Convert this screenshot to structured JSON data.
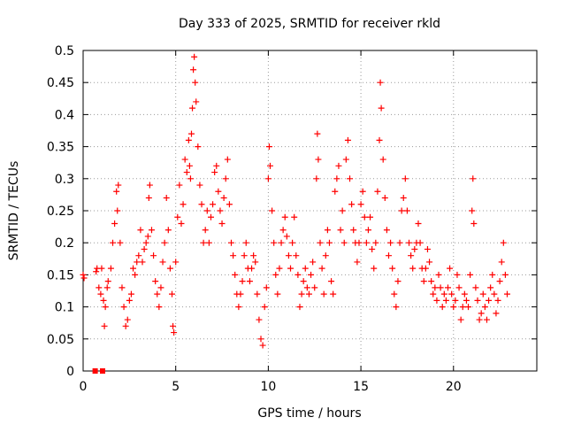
{
  "chart_data": {
    "type": "scatter",
    "title": "Day 333 of 2025, SRMTID for receiver rkld",
    "xlabel": "GPS time / hours",
    "ylabel": "SRMTID / TECUs",
    "xlim": [
      0,
      24.5
    ],
    "ylim": [
      0,
      0.5
    ],
    "x_ticks": [
      "0",
      "5",
      "10",
      "15",
      "20"
    ],
    "y_ticks": [
      "0",
      "0.05",
      "0.1",
      "0.15",
      "0.2",
      "0.25",
      "0.3",
      "0.35",
      "0.4",
      "0.45",
      "0.5"
    ],
    "x_tick_values": [
      0,
      5,
      10,
      15,
      20
    ],
    "y_tick_values": [
      0,
      0.05,
      0.1,
      0.15,
      0.2,
      0.25,
      0.3,
      0.35,
      0.4,
      0.45,
      0.5
    ],
    "grid": true,
    "legend": "none",
    "marker": "plus",
    "color": "#ff0000",
    "zero_points": {
      "x": [
        0.65,
        1.05
      ],
      "y": [
        0,
        0
      ]
    },
    "points": [
      [
        0.0,
        0.15
      ],
      [
        0.05,
        0.145
      ],
      [
        0.7,
        0.155
      ],
      [
        0.75,
        0.16
      ],
      [
        0.85,
        0.13
      ],
      [
        0.95,
        0.12
      ],
      [
        1.0,
        0.16
      ],
      [
        1.1,
        0.11
      ],
      [
        1.15,
        0.07
      ],
      [
        1.2,
        0.1
      ],
      [
        1.3,
        0.13
      ],
      [
        1.35,
        0.14
      ],
      [
        1.5,
        0.16
      ],
      [
        1.6,
        0.2
      ],
      [
        1.7,
        0.23
      ],
      [
        1.8,
        0.28
      ],
      [
        1.85,
        0.25
      ],
      [
        1.9,
        0.29
      ],
      [
        2.0,
        0.2
      ],
      [
        2.1,
        0.13
      ],
      [
        2.2,
        0.1
      ],
      [
        2.3,
        0.07
      ],
      [
        2.4,
        0.08
      ],
      [
        2.5,
        0.11
      ],
      [
        2.6,
        0.12
      ],
      [
        2.7,
        0.16
      ],
      [
        2.8,
        0.15
      ],
      [
        2.9,
        0.17
      ],
      [
        3.0,
        0.18
      ],
      [
        3.1,
        0.22
      ],
      [
        3.2,
        0.17
      ],
      [
        3.3,
        0.19
      ],
      [
        3.4,
        0.2
      ],
      [
        3.5,
        0.21
      ],
      [
        3.55,
        0.27
      ],
      [
        3.6,
        0.29
      ],
      [
        3.7,
        0.22
      ],
      [
        3.8,
        0.18
      ],
      [
        3.9,
        0.14
      ],
      [
        4.0,
        0.12
      ],
      [
        4.1,
        0.1
      ],
      [
        4.2,
        0.13
      ],
      [
        4.3,
        0.17
      ],
      [
        4.4,
        0.2
      ],
      [
        4.5,
        0.27
      ],
      [
        4.6,
        0.22
      ],
      [
        4.7,
        0.16
      ],
      [
        4.8,
        0.12
      ],
      [
        4.85,
        0.07
      ],
      [
        4.9,
        0.06
      ],
      [
        5.0,
        0.17
      ],
      [
        5.1,
        0.24
      ],
      [
        5.2,
        0.29
      ],
      [
        5.3,
        0.23
      ],
      [
        5.4,
        0.26
      ],
      [
        5.5,
        0.33
      ],
      [
        5.6,
        0.31
      ],
      [
        5.7,
        0.36
      ],
      [
        5.75,
        0.32
      ],
      [
        5.8,
        0.3
      ],
      [
        5.85,
        0.37
      ],
      [
        5.9,
        0.41
      ],
      [
        5.95,
        0.47
      ],
      [
        6.0,
        0.49
      ],
      [
        6.05,
        0.45
      ],
      [
        6.1,
        0.42
      ],
      [
        6.2,
        0.35
      ],
      [
        6.3,
        0.29
      ],
      [
        6.4,
        0.26
      ],
      [
        6.5,
        0.2
      ],
      [
        6.6,
        0.22
      ],
      [
        6.7,
        0.25
      ],
      [
        6.8,
        0.2
      ],
      [
        6.9,
        0.24
      ],
      [
        7.0,
        0.26
      ],
      [
        7.1,
        0.31
      ],
      [
        7.2,
        0.32
      ],
      [
        7.3,
        0.28
      ],
      [
        7.4,
        0.25
      ],
      [
        7.5,
        0.23
      ],
      [
        7.6,
        0.27
      ],
      [
        7.7,
        0.3
      ],
      [
        7.8,
        0.33
      ],
      [
        7.9,
        0.26
      ],
      [
        8.0,
        0.2
      ],
      [
        8.1,
        0.18
      ],
      [
        8.2,
        0.15
      ],
      [
        8.3,
        0.12
      ],
      [
        8.4,
        0.1
      ],
      [
        8.5,
        0.12
      ],
      [
        8.6,
        0.14
      ],
      [
        8.7,
        0.18
      ],
      [
        8.8,
        0.2
      ],
      [
        8.9,
        0.16
      ],
      [
        9.0,
        0.14
      ],
      [
        9.1,
        0.16
      ],
      [
        9.2,
        0.18
      ],
      [
        9.3,
        0.17
      ],
      [
        9.4,
        0.12
      ],
      [
        9.5,
        0.08
      ],
      [
        9.6,
        0.05
      ],
      [
        9.7,
        0.04
      ],
      [
        9.8,
        0.1
      ],
      [
        9.9,
        0.13
      ],
      [
        10.0,
        0.3
      ],
      [
        10.05,
        0.35
      ],
      [
        10.1,
        0.32
      ],
      [
        10.2,
        0.25
      ],
      [
        10.3,
        0.2
      ],
      [
        10.4,
        0.15
      ],
      [
        10.5,
        0.12
      ],
      [
        10.6,
        0.16
      ],
      [
        10.7,
        0.2
      ],
      [
        10.8,
        0.22
      ],
      [
        10.9,
        0.24
      ],
      [
        11.0,
        0.21
      ],
      [
        11.1,
        0.18
      ],
      [
        11.2,
        0.16
      ],
      [
        11.3,
        0.2
      ],
      [
        11.4,
        0.24
      ],
      [
        11.5,
        0.18
      ],
      [
        11.6,
        0.15
      ],
      [
        11.7,
        0.1
      ],
      [
        11.8,
        0.12
      ],
      [
        11.9,
        0.14
      ],
      [
        12.0,
        0.16
      ],
      [
        12.1,
        0.13
      ],
      [
        12.2,
        0.12
      ],
      [
        12.3,
        0.15
      ],
      [
        12.4,
        0.17
      ],
      [
        12.5,
        0.13
      ],
      [
        12.6,
        0.3
      ],
      [
        12.65,
        0.37
      ],
      [
        12.7,
        0.33
      ],
      [
        12.8,
        0.2
      ],
      [
        12.9,
        0.16
      ],
      [
        13.0,
        0.12
      ],
      [
        13.1,
        0.18
      ],
      [
        13.2,
        0.22
      ],
      [
        13.3,
        0.2
      ],
      [
        13.4,
        0.14
      ],
      [
        13.5,
        0.12
      ],
      [
        13.6,
        0.28
      ],
      [
        13.7,
        0.3
      ],
      [
        13.8,
        0.32
      ],
      [
        13.9,
        0.22
      ],
      [
        14.0,
        0.25
      ],
      [
        14.1,
        0.2
      ],
      [
        14.2,
        0.33
      ],
      [
        14.3,
        0.36
      ],
      [
        14.4,
        0.3
      ],
      [
        14.5,
        0.26
      ],
      [
        14.6,
        0.22
      ],
      [
        14.7,
        0.2
      ],
      [
        14.8,
        0.17
      ],
      [
        14.9,
        0.2
      ],
      [
        15.0,
        0.26
      ],
      [
        15.1,
        0.28
      ],
      [
        15.2,
        0.24
      ],
      [
        15.3,
        0.2
      ],
      [
        15.4,
        0.22
      ],
      [
        15.5,
        0.24
      ],
      [
        15.6,
        0.19
      ],
      [
        15.7,
        0.16
      ],
      [
        15.8,
        0.2
      ],
      [
        15.9,
        0.28
      ],
      [
        16.0,
        0.36
      ],
      [
        16.05,
        0.45
      ],
      [
        16.1,
        0.41
      ],
      [
        16.2,
        0.33
      ],
      [
        16.3,
        0.27
      ],
      [
        16.4,
        0.22
      ],
      [
        16.5,
        0.18
      ],
      [
        16.6,
        0.2
      ],
      [
        16.7,
        0.16
      ],
      [
        16.8,
        0.12
      ],
      [
        16.9,
        0.1
      ],
      [
        17.0,
        0.14
      ],
      [
        17.1,
        0.2
      ],
      [
        17.2,
        0.25
      ],
      [
        17.3,
        0.27
      ],
      [
        17.4,
        0.3
      ],
      [
        17.5,
        0.25
      ],
      [
        17.6,
        0.2
      ],
      [
        17.7,
        0.18
      ],
      [
        17.8,
        0.16
      ],
      [
        17.9,
        0.19
      ],
      [
        18.0,
        0.2
      ],
      [
        18.1,
        0.23
      ],
      [
        18.2,
        0.2
      ],
      [
        18.3,
        0.16
      ],
      [
        18.4,
        0.14
      ],
      [
        18.5,
        0.16
      ],
      [
        18.6,
        0.19
      ],
      [
        18.7,
        0.17
      ],
      [
        18.8,
        0.14
      ],
      [
        18.9,
        0.12
      ],
      [
        19.0,
        0.13
      ],
      [
        19.1,
        0.11
      ],
      [
        19.2,
        0.15
      ],
      [
        19.3,
        0.13
      ],
      [
        19.4,
        0.1
      ],
      [
        19.5,
        0.12
      ],
      [
        19.6,
        0.11
      ],
      [
        19.7,
        0.13
      ],
      [
        19.8,
        0.16
      ],
      [
        19.9,
        0.12
      ],
      [
        20.0,
        0.1
      ],
      [
        20.1,
        0.11
      ],
      [
        20.2,
        0.15
      ],
      [
        20.3,
        0.13
      ],
      [
        20.4,
        0.08
      ],
      [
        20.5,
        0.1
      ],
      [
        20.6,
        0.12
      ],
      [
        20.7,
        0.11
      ],
      [
        20.8,
        0.1
      ],
      [
        20.9,
        0.15
      ],
      [
        21.0,
        0.25
      ],
      [
        21.05,
        0.3
      ],
      [
        21.1,
        0.23
      ],
      [
        21.2,
        0.13
      ],
      [
        21.3,
        0.11
      ],
      [
        21.4,
        0.08
      ],
      [
        21.5,
        0.09
      ],
      [
        21.6,
        0.12
      ],
      [
        21.7,
        0.1
      ],
      [
        21.8,
        0.08
      ],
      [
        21.9,
        0.11
      ],
      [
        22.0,
        0.13
      ],
      [
        22.1,
        0.15
      ],
      [
        22.2,
        0.12
      ],
      [
        22.3,
        0.09
      ],
      [
        22.4,
        0.11
      ],
      [
        22.5,
        0.14
      ],
      [
        22.6,
        0.17
      ],
      [
        22.7,
        0.2
      ],
      [
        22.8,
        0.15
      ],
      [
        22.9,
        0.12
      ]
    ]
  }
}
